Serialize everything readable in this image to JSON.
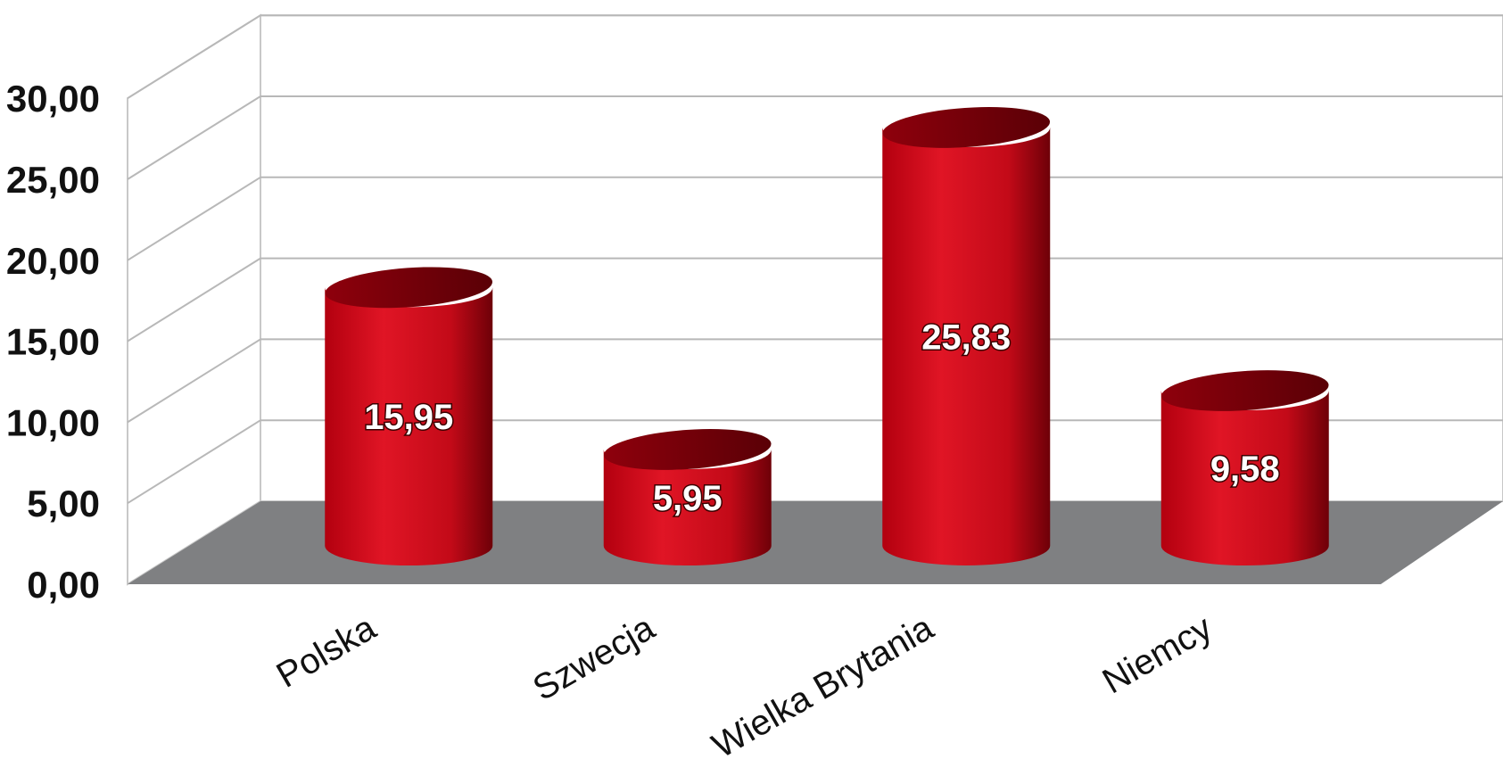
{
  "chart_data": {
    "type": "bar",
    "style": "3d-cylinder",
    "categories": [
      "Polska",
      "Szwecja",
      "Wielka Brytania",
      "Niemcy"
    ],
    "values": [
      15.95,
      5.95,
      25.83,
      9.58
    ],
    "value_labels": [
      "15,95",
      "5,95",
      "25,83",
      "9,58"
    ],
    "y_ticks": [
      "0,00",
      "5,00",
      "10,00",
      "15,00",
      "20,00",
      "25,00",
      "30,00"
    ],
    "ylim": [
      0,
      30
    ],
    "title": "",
    "xlabel": "",
    "ylabel": "",
    "grid": true,
    "legend": "none",
    "colors": {
      "bar": "#d0101f",
      "bar_dark": "#6e0008",
      "floor": "#7f8082",
      "grid": "#b8b8b8"
    }
  }
}
